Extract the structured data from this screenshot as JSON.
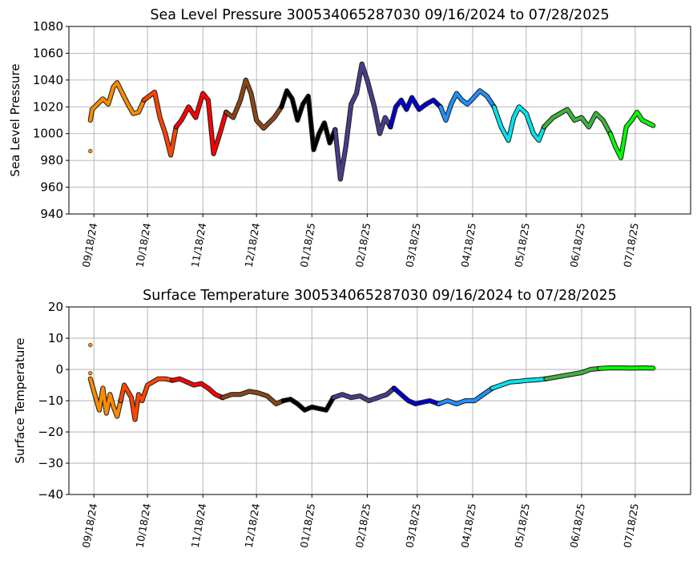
{
  "chart_data": [
    {
      "type": "scatter",
      "title": "Sea Level Pressure 300534065287030  09/16/2024 to 07/28/2025",
      "xlabel": "",
      "ylabel": "Sea Level Pressure",
      "ylim": [
        940,
        1080
      ],
      "yticks": [
        "940",
        "960",
        "980",
        "1000",
        "1020",
        "1040",
        "1060",
        "1080"
      ],
      "xlim": [
        "2024-09-04",
        "2025-08-18"
      ],
      "xtick_dates": [
        "2024-09-18",
        "2024-10-18",
        "2024-11-18",
        "2024-12-18",
        "2025-01-18",
        "2025-02-18",
        "2025-03-18",
        "2025-04-18",
        "2025-05-18",
        "2025-06-18",
        "2025-07-18"
      ],
      "xticks": [
        "09/18/24",
        "10/18/24",
        "11/18/24",
        "12/18/24",
        "01/18/25",
        "02/18/25",
        "03/18/25",
        "04/18/25",
        "05/18/25",
        "06/18/25",
        "07/18/25"
      ],
      "grid": true,
      "series": [
        {
          "color": "#ff8c00",
          "x": [
            "2024-09-16",
            "2024-09-17",
            "2024-09-20",
            "2024-09-23",
            "2024-09-26",
            "2024-09-29",
            "2024-10-01",
            "2024-10-04",
            "2024-10-07",
            "2024-10-10",
            "2024-10-13",
            "2024-10-16"
          ],
          "y": [
            1010,
            1018,
            1022,
            1026,
            1022,
            1035,
            1038,
            1030,
            1022,
            1015,
            1016,
            1025
          ]
        },
        {
          "color": "#ff4500",
          "x": [
            "2024-10-16",
            "2024-10-19",
            "2024-10-22",
            "2024-10-25",
            "2024-10-28",
            "2024-10-31",
            "2024-11-03"
          ],
          "y": [
            1025,
            1028,
            1031,
            1012,
            1000,
            984,
            1005
          ]
        },
        {
          "color": "#ff0000",
          "x": [
            "2024-11-03",
            "2024-11-06",
            "2024-11-10",
            "2024-11-14",
            "2024-11-18",
            "2024-11-21",
            "2024-11-24",
            "2024-11-28",
            "2024-12-01"
          ],
          "y": [
            1005,
            1010,
            1020,
            1012,
            1030,
            1025,
            985,
            1002,
            1016
          ]
        },
        {
          "color": "#8b4513",
          "x": [
            "2024-12-01",
            "2024-12-05",
            "2024-12-09",
            "2024-12-12",
            "2024-12-15",
            "2024-12-18",
            "2024-12-22",
            "2024-12-25",
            "2024-12-28",
            "2025-01-01"
          ],
          "y": [
            1016,
            1012,
            1025,
            1040,
            1030,
            1010,
            1004,
            1008,
            1012,
            1020
          ]
        },
        {
          "color": "#000000",
          "x": [
            "2025-01-01",
            "2025-01-04",
            "2025-01-07",
            "2025-01-10",
            "2025-01-13",
            "2025-01-16",
            "2025-01-19",
            "2025-01-22",
            "2025-01-25",
            "2025-01-28",
            "2025-01-31"
          ],
          "y": [
            1020,
            1032,
            1026,
            1010,
            1022,
            1028,
            988,
            1000,
            1008,
            993,
            1003
          ]
        },
        {
          "color": "#483d8b",
          "x": [
            "2025-01-31",
            "2025-02-03",
            "2025-02-06",
            "2025-02-09",
            "2025-02-12",
            "2025-02-15",
            "2025-02-18",
            "2025-02-22",
            "2025-02-25",
            "2025-02-28",
            "2025-03-03"
          ],
          "y": [
            1003,
            966,
            990,
            1022,
            1030,
            1052,
            1040,
            1020,
            1000,
            1012,
            1005
          ]
        },
        {
          "color": "#0000cd",
          "x": [
            "2025-03-03",
            "2025-03-06",
            "2025-03-09",
            "2025-03-12",
            "2025-03-15",
            "2025-03-19",
            "2025-03-23",
            "2025-03-27",
            "2025-03-31"
          ],
          "y": [
            1005,
            1020,
            1025,
            1018,
            1027,
            1018,
            1022,
            1025,
            1020
          ]
        },
        {
          "color": "#1e90ff",
          "x": [
            "2025-03-31",
            "2025-04-03",
            "2025-04-06",
            "2025-04-09",
            "2025-04-12",
            "2025-04-15",
            "2025-04-18",
            "2025-04-22",
            "2025-04-26",
            "2025-04-30"
          ],
          "y": [
            1020,
            1010,
            1022,
            1030,
            1025,
            1022,
            1026,
            1032,
            1028,
            1020
          ]
        },
        {
          "color": "#00e5ee",
          "x": [
            "2025-04-30",
            "2025-05-04",
            "2025-05-08",
            "2025-05-11",
            "2025-05-14",
            "2025-05-18",
            "2025-05-22",
            "2025-05-25",
            "2025-05-28"
          ],
          "y": [
            1020,
            1005,
            995,
            1012,
            1020,
            1015,
            1000,
            995,
            1005
          ]
        },
        {
          "color": "#3cb43c",
          "x": [
            "2025-05-28",
            "2025-06-02",
            "2025-06-06",
            "2025-06-10",
            "2025-06-14",
            "2025-06-18",
            "2025-06-22",
            "2025-06-26",
            "2025-06-30",
            "2025-07-04"
          ],
          "y": [
            1005,
            1012,
            1015,
            1018,
            1010,
            1012,
            1005,
            1015,
            1010,
            1000
          ]
        },
        {
          "color": "#00ff00",
          "x": [
            "2025-07-04",
            "2025-07-07",
            "2025-07-10",
            "2025-07-13",
            "2025-07-16",
            "2025-07-19",
            "2025-07-22",
            "2025-07-25",
            "2025-07-28"
          ],
          "y": [
            1000,
            990,
            982,
            1005,
            1010,
            1016,
            1010,
            1008,
            1006
          ]
        }
      ],
      "points": [
        {
          "color": "#ff8c00",
          "x": "2024-09-16",
          "y": 987
        }
      ]
    },
    {
      "type": "scatter",
      "title": "Surface Temperature 300534065287030  09/16/2024 to 07/28/2025",
      "xlabel": "",
      "ylabel": "Surface Temperature",
      "ylim": [
        -40,
        20
      ],
      "yticks": [
        "−40",
        "−30",
        "−20",
        "−10",
        "0",
        "10",
        "20"
      ],
      "xlim": [
        "2024-09-04",
        "2025-08-18"
      ],
      "xtick_dates": [
        "2024-09-18",
        "2024-10-18",
        "2024-11-18",
        "2024-12-18",
        "2025-01-18",
        "2025-02-18",
        "2025-03-18",
        "2025-04-18",
        "2025-05-18",
        "2025-06-18",
        "2025-07-18"
      ],
      "xticks": [
        "09/18/24",
        "10/18/24",
        "11/18/24",
        "12/18/24",
        "01/18/25",
        "02/18/25",
        "03/18/25",
        "04/18/25",
        "05/18/25",
        "06/18/25",
        "07/18/25"
      ],
      "grid": true,
      "series": [
        {
          "color": "#ff8c00",
          "x": [
            "2024-09-16",
            "2024-09-17",
            "2024-09-19",
            "2024-09-21",
            "2024-09-23",
            "2024-09-25",
            "2024-09-27",
            "2024-09-29",
            "2024-10-01",
            "2024-10-03"
          ],
          "y": [
            -3,
            -5,
            -9,
            -13,
            -6,
            -14,
            -8,
            -12,
            -15,
            -10
          ]
        },
        {
          "color": "#ff4500",
          "x": [
            "2024-10-03",
            "2024-10-05",
            "2024-10-07",
            "2024-10-09",
            "2024-10-11",
            "2024-10-13",
            "2024-10-15",
            "2024-10-18",
            "2024-10-21",
            "2024-10-24",
            "2024-10-28",
            "2024-11-01"
          ],
          "y": [
            -10,
            -5,
            -7,
            -9,
            -16,
            -8,
            -10,
            -5,
            -4,
            -3,
            -3,
            -3.5
          ]
        },
        {
          "color": "#ff0000",
          "x": [
            "2024-11-01",
            "2024-11-05",
            "2024-11-09",
            "2024-11-13",
            "2024-11-17",
            "2024-11-21",
            "2024-11-25",
            "2024-11-29"
          ],
          "y": [
            -3.5,
            -3,
            -4,
            -5,
            -4.5,
            -6,
            -8,
            -9
          ]
        },
        {
          "color": "#8b4513",
          "x": [
            "2024-11-29",
            "2024-12-04",
            "2024-12-09",
            "2024-12-14",
            "2024-12-19",
            "2024-12-24",
            "2024-12-29",
            "2025-01-02"
          ],
          "y": [
            -9,
            -8,
            -8,
            -7,
            -7.5,
            -8.5,
            -11,
            -10
          ]
        },
        {
          "color": "#000000",
          "x": [
            "2025-01-02",
            "2025-01-06",
            "2025-01-10",
            "2025-01-14",
            "2025-01-18",
            "2025-01-22",
            "2025-01-26",
            "2025-01-30"
          ],
          "y": [
            -10,
            -9.5,
            -11,
            -13,
            -12,
            -12.5,
            -13,
            -9
          ]
        },
        {
          "color": "#483d8b",
          "x": [
            "2025-01-30",
            "2025-02-04",
            "2025-02-09",
            "2025-02-14",
            "2025-02-19",
            "2025-02-24",
            "2025-03-01",
            "2025-03-05"
          ],
          "y": [
            -9,
            -8,
            -9,
            -8.5,
            -10,
            -9,
            -8,
            -6
          ]
        },
        {
          "color": "#0000cd",
          "x": [
            "2025-03-05",
            "2025-03-09",
            "2025-03-13",
            "2025-03-17",
            "2025-03-21",
            "2025-03-25",
            "2025-03-30"
          ],
          "y": [
            -6,
            -8,
            -10,
            -11,
            -10.5,
            -10,
            -11
          ]
        },
        {
          "color": "#1e90ff",
          "x": [
            "2025-03-30",
            "2025-04-04",
            "2025-04-09",
            "2025-04-14",
            "2025-04-19",
            "2025-04-24",
            "2025-04-29"
          ],
          "y": [
            -11,
            -10,
            -11,
            -10,
            -10,
            -8,
            -6
          ]
        },
        {
          "color": "#00e5ee",
          "x": [
            "2025-04-29",
            "2025-05-04",
            "2025-05-09",
            "2025-05-14",
            "2025-05-19",
            "2025-05-24",
            "2025-05-29"
          ],
          "y": [
            -6,
            -5,
            -4,
            -3.8,
            -3.5,
            -3.3,
            -3
          ]
        },
        {
          "color": "#3cb43c",
          "x": [
            "2025-05-29",
            "2025-06-03",
            "2025-06-08",
            "2025-06-13",
            "2025-06-18",
            "2025-06-23",
            "2025-06-28"
          ],
          "y": [
            -3,
            -2.5,
            -2,
            -1.5,
            -1,
            0,
            0.3
          ]
        },
        {
          "color": "#00ff00",
          "x": [
            "2025-06-28",
            "2025-07-04",
            "2025-07-10",
            "2025-07-16",
            "2025-07-22",
            "2025-07-28"
          ],
          "y": [
            0.3,
            0.5,
            0.5,
            0.4,
            0.5,
            0.4
          ]
        }
      ],
      "points": [
        {
          "color": "#ff8c00",
          "x": "2024-09-16",
          "y": 7.8
        },
        {
          "color": "#ff8c00",
          "x": "2024-09-16",
          "y": -1.2
        }
      ]
    }
  ]
}
